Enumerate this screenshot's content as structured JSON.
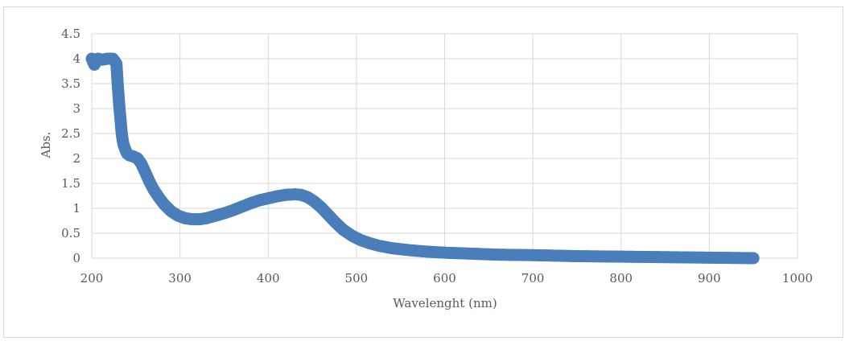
{
  "chart_data": {
    "type": "scatter",
    "title": "",
    "xlabel": "Wavelenght (nm)",
    "ylabel": "Abs.",
    "xlim": [
      200,
      1000
    ],
    "ylim": [
      0,
      4.5
    ],
    "x_ticks": [
      "200",
      "300",
      "400",
      "500",
      "600",
      "700",
      "800",
      "900",
      "1000"
    ],
    "y_ticks": [
      "0",
      "0.5",
      "1",
      "1.5",
      "2",
      "2.5",
      "3",
      "3.5",
      "4",
      "4.5"
    ],
    "grid": true,
    "legend": "none",
    "series": [
      {
        "color": "#4a7ebb",
        "x": [
          200,
          203,
          207,
          212,
          218,
          224,
          228,
          229,
          230,
          231,
          232,
          233,
          234,
          235,
          236,
          238,
          240,
          243,
          247,
          252,
          256,
          260,
          265,
          270,
          276,
          282,
          290,
          298,
          306,
          314,
          322,
          330,
          340,
          350,
          360,
          370,
          380,
          390,
          400,
          410,
          420,
          430,
          437,
          445,
          452,
          460,
          468,
          476,
          485,
          495,
          505,
          515,
          525,
          540,
          560,
          580,
          600,
          630,
          660,
          700,
          750,
          800,
          850,
          900,
          950
        ],
        "y": [
          4.0,
          3.88,
          4.0,
          3.98,
          4.0,
          4.0,
          3.9,
          3.6,
          3.35,
          3.1,
          2.9,
          2.7,
          2.5,
          2.38,
          2.28,
          2.18,
          2.1,
          2.06,
          2.04,
          2.0,
          1.9,
          1.75,
          1.55,
          1.38,
          1.22,
          1.08,
          0.94,
          0.85,
          0.8,
          0.78,
          0.78,
          0.8,
          0.85,
          0.9,
          0.96,
          1.03,
          1.1,
          1.16,
          1.2,
          1.24,
          1.27,
          1.28,
          1.27,
          1.22,
          1.14,
          1.02,
          0.87,
          0.72,
          0.57,
          0.45,
          0.36,
          0.3,
          0.25,
          0.2,
          0.16,
          0.13,
          0.11,
          0.09,
          0.07,
          0.06,
          0.04,
          0.03,
          0.02,
          0.01,
          0.0
        ]
      }
    ]
  }
}
